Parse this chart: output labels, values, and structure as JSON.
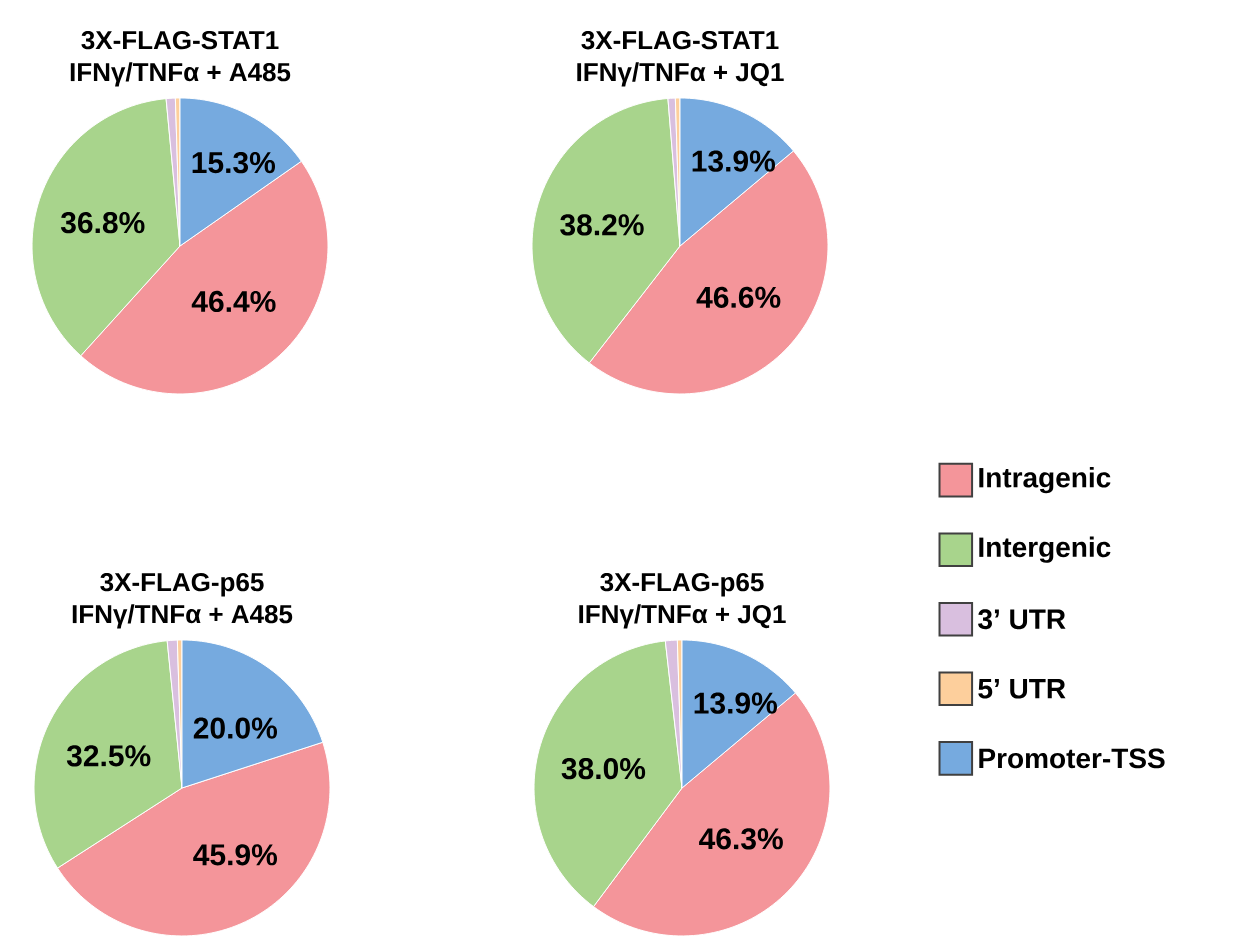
{
  "chart_data": [
    {
      "type": "pie",
      "title": "3X-FLAG-STAT1",
      "subtitle": "IFNγ/TNFα + A485",
      "categories": [
        null,
        null,
        null,
        null,
        null
      ],
      "values": [
        46.4,
        36.8,
        1.0,
        0.5,
        15.3
      ],
      "value_labels": [
        "46.4%",
        "36.8%",
        null,
        null,
        "15.3%"
      ],
      "colors": [
        "#f4959a",
        "#a8d48c",
        "#d9bfdf",
        "#fdcf9c",
        "#76aadf"
      ]
    },
    {
      "type": "pie",
      "title": "3X-FLAG-STAT1",
      "subtitle": "IFNγ/TNFα + JQ1",
      "categories": [
        null,
        null,
        null,
        null,
        null
      ],
      "values": [
        46.6,
        38.2,
        0.8,
        0.5,
        13.9
      ],
      "value_labels": [
        "46.6%",
        "38.2%",
        null,
        null,
        "13.9%"
      ],
      "colors": [
        "#f4959a",
        "#a8d48c",
        "#d9bfdf",
        "#fdcf9c",
        "#76aadf"
      ]
    },
    {
      "type": "pie",
      "title": "3X-FLAG-p65",
      "subtitle": "IFNγ/TNFα + A485",
      "categories": [
        null,
        null,
        null,
        null,
        null
      ],
      "values": [
        45.9,
        32.5,
        1.1,
        0.5,
        20.0
      ],
      "value_labels": [
        "45.9%",
        "32.5%",
        null,
        null,
        "20.0%"
      ],
      "colors": [
        "#f4959a",
        "#a8d48c",
        "#d9bfdf",
        "#fdcf9c",
        "#76aadf"
      ]
    },
    {
      "type": "pie",
      "title": "3X-FLAG-p65",
      "subtitle": "IFNγ/TNFα + JQ1",
      "categories": [
        "Intragenic",
        "Intergenic",
        "3’ UTR",
        "5’ UTR",
        "Promoter-TSS"
      ],
      "values": [
        46.3,
        38.0,
        1.3,
        0.5,
        13.9
      ],
      "value_labels": [
        "46.3%",
        "38.0%",
        null,
        null,
        "13.9%"
      ],
      "colors": [
        "#f4959a",
        "#a8d48c",
        "#d9bfdf",
        "#fdcf9c",
        "#76aadf"
      ],
      "legend": "right"
    }
  ]
}
